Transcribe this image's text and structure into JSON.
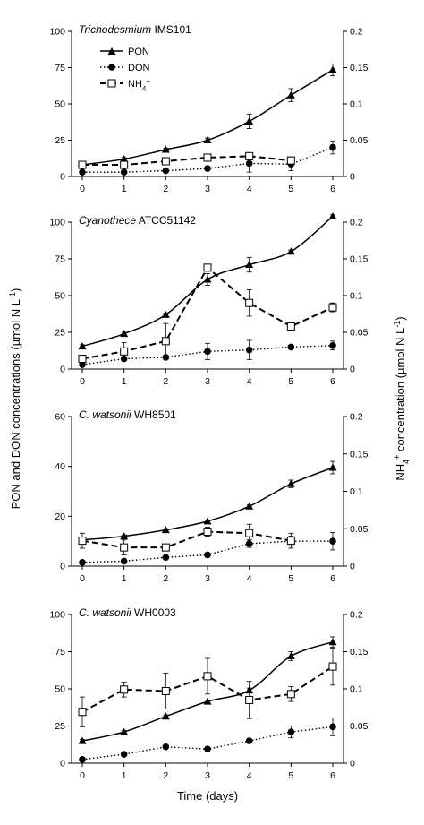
{
  "figure": {
    "left_axis_label": "PON and DON concentrations (µmol N L",
    "left_axis_sup": "-1",
    "left_axis_close": ")",
    "right_axis_prefix": "NH",
    "right_axis_sub": "4",
    "right_axis_sup": "+",
    "right_axis_label": " concentration (µmol N L",
    "right_axis_sup2": "-1",
    "right_axis_close": ")",
    "x_axis_label": "Time (days)"
  },
  "legend": {
    "pon": "PON",
    "don": "DON",
    "nh4_prefix": "NH",
    "nh4_sub": "4",
    "nh4_sup": "+"
  },
  "colors": {
    "line": "#000000",
    "axis": "#000000",
    "marker_open": "#ffffff"
  },
  "chart_data": [
    {
      "type": "line",
      "title_italic": "Trichodesmium",
      "title_rest": " IMS101",
      "x": [
        0,
        1,
        2,
        3,
        4,
        5,
        6
      ],
      "xlim": [
        0,
        6
      ],
      "ylim_left": [
        0,
        100
      ],
      "yticks_left": [
        0,
        25,
        50,
        75,
        100
      ],
      "ylim_right": [
        0,
        0.2
      ],
      "yticks_right": [
        0,
        0.05,
        0.1,
        0.15,
        0.2
      ],
      "series": [
        {
          "name": "PON",
          "axis": "left",
          "values": [
            8,
            12,
            18.5,
            25,
            38,
            56,
            73.5
          ],
          "errors": [
            1,
            1,
            1,
            1.5,
            5,
            4.5,
            4
          ]
        },
        {
          "name": "DON",
          "axis": "left",
          "values": [
            3,
            3,
            4,
            5.5,
            9,
            8.5,
            20
          ],
          "errors": [
            0,
            0,
            0,
            0,
            6,
            4.5,
            4.5
          ]
        },
        {
          "name": "NH4+",
          "axis": "right",
          "values": [
            0.016,
            0.016,
            0.021,
            0.026,
            0.028,
            0.022,
            0
          ],
          "errors": [
            0.003,
            0.003,
            0.004,
            0.005,
            0.004,
            0.005,
            0
          ]
        }
      ]
    },
    {
      "type": "line",
      "title_italic": "Cyanothece",
      "title_rest": " ATCC51142",
      "x": [
        0,
        1,
        2,
        3,
        4,
        5,
        6
      ],
      "xlim": [
        0,
        6
      ],
      "ylim_left": [
        0,
        100
      ],
      "yticks_left": [
        0,
        25,
        50,
        75,
        100
      ],
      "ylim_right": [
        0,
        0.2
      ],
      "yticks_right": [
        0,
        0.05,
        0.1,
        0.15,
        0.2
      ],
      "series": [
        {
          "name": "PON",
          "axis": "left",
          "values": [
            15.5,
            24,
            37,
            61,
            71,
            80,
            104
          ],
          "errors": [
            1,
            1,
            1,
            4,
            5,
            1,
            1
          ]
        },
        {
          "name": "DON",
          "axis": "left",
          "values": [
            3,
            7,
            8,
            12,
            13,
            15,
            16
          ],
          "errors": [
            0,
            0,
            0,
            5.5,
            6.5,
            0.5,
            3
          ]
        },
        {
          "name": "NH4+",
          "axis": "right",
          "values": [
            0.014,
            0.024,
            0.038,
            0.138,
            0.09,
            0.058,
            0.084
          ],
          "errors": [
            0.003,
            0.012,
            0.024,
            0.004,
            0.018,
            0.003,
            0.006
          ]
        }
      ]
    },
    {
      "type": "line",
      "title_italic": "C. watsonii",
      "title_rest": " WH8501",
      "x": [
        0,
        1,
        2,
        3,
        4,
        5,
        6
      ],
      "xlim": [
        0,
        6
      ],
      "ylim_left": [
        0,
        60
      ],
      "yticks_left": [
        0,
        20,
        40,
        60
      ],
      "ylim_right": [
        0,
        0.2
      ],
      "yticks_right": [
        0,
        0.05,
        0.1,
        0.15,
        0.2
      ],
      "series": [
        {
          "name": "PON",
          "axis": "left",
          "values": [
            10.5,
            12,
            14.5,
            18,
            24,
            33,
            39.5
          ],
          "errors": [
            1,
            0.5,
            0.5,
            0.5,
            0.5,
            1.5,
            2.5
          ]
        },
        {
          "name": "DON",
          "axis": "left",
          "values": [
            1.5,
            2,
            3.5,
            4.5,
            9,
            10,
            10
          ],
          "errors": [
            0,
            0,
            0,
            0,
            1.5,
            2,
            3.5
          ]
        },
        {
          "name": "NH4+",
          "axis": "right",
          "values": [
            0.034,
            0.025,
            0.025,
            0.046,
            0.044,
            0.034,
            0
          ],
          "errors": [
            0.01,
            0.01,
            0,
            0.006,
            0.012,
            0.01,
            0
          ]
        }
      ]
    },
    {
      "type": "line",
      "title_italic": "C. watsonii",
      "title_rest": " WH0003",
      "x": [
        0,
        1,
        2,
        3,
        4,
        5,
        6
      ],
      "xlim": [
        0,
        6
      ],
      "ylim_left": [
        0,
        100
      ],
      "yticks_left": [
        0,
        25,
        50,
        75,
        100
      ],
      "ylim_right": [
        0,
        0.2
      ],
      "yticks_right": [
        0,
        0.05,
        0.1,
        0.15,
        0.2
      ],
      "series": [
        {
          "name": "PON",
          "axis": "left",
          "values": [
            15,
            21,
            31.5,
            41.5,
            49,
            72,
            81.5
          ],
          "errors": [
            1,
            1,
            1,
            1,
            1.5,
            3,
            3.5
          ]
        },
        {
          "name": "DON",
          "axis": "left",
          "values": [
            2.5,
            6,
            11,
            9.5,
            15,
            21,
            24.5
          ],
          "errors": [
            0,
            0,
            0,
            0,
            0,
            4,
            6
          ]
        },
        {
          "name": "NH4+",
          "axis": "right",
          "values": [
            0.069,
            0.099,
            0.097,
            0.117,
            0.085,
            0.093,
            0.13
          ],
          "errors": [
            0.02,
            0.01,
            0.024,
            0.024,
            0.025,
            0.01,
            0.025
          ]
        }
      ]
    }
  ]
}
